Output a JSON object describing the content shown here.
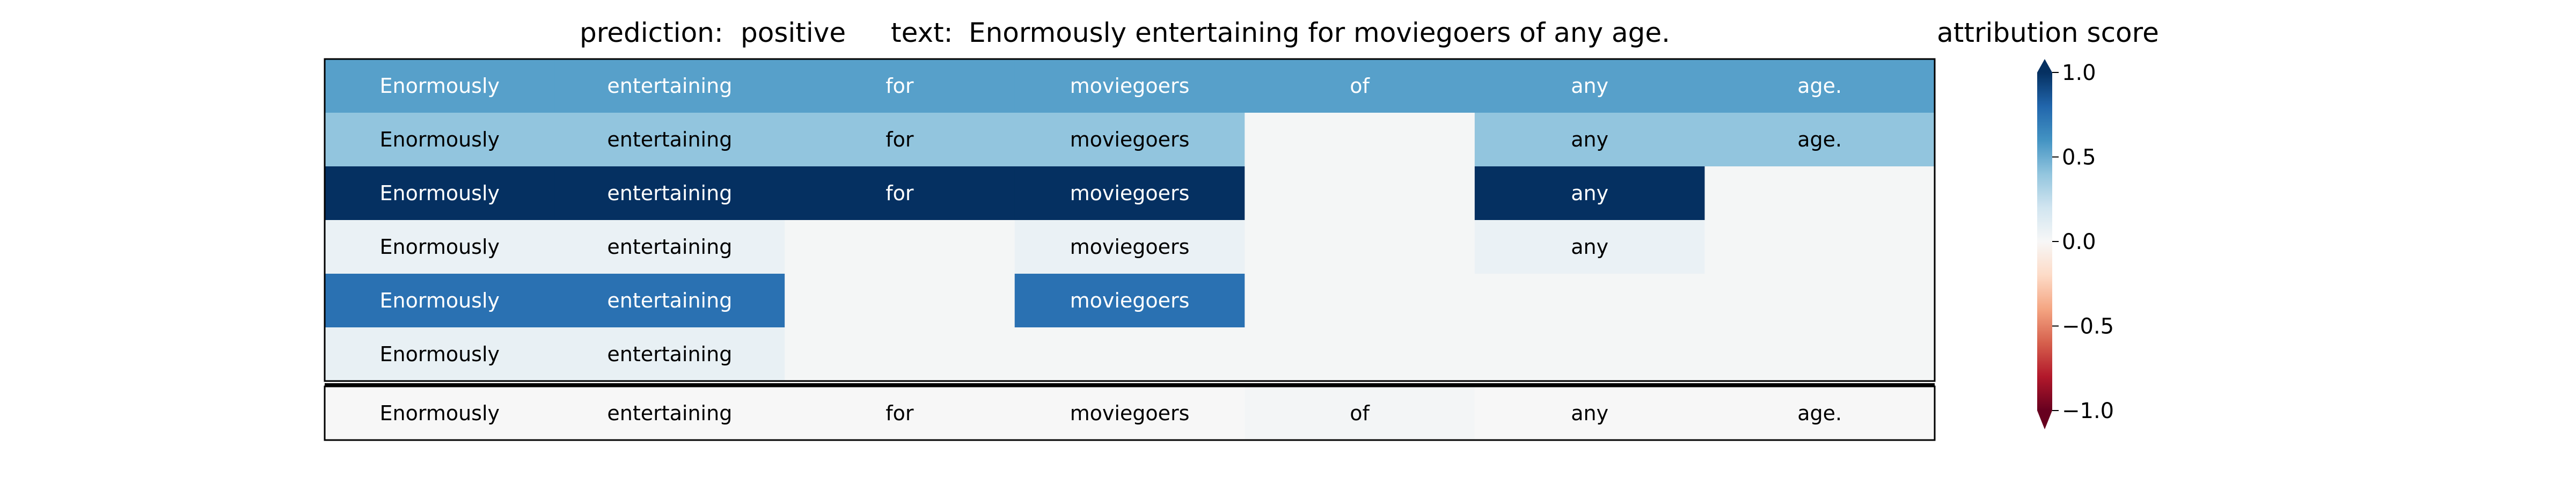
{
  "header": {
    "prediction_label": "prediction:",
    "prediction_value": "positive",
    "text_label": "text:",
    "text_value": "Enormously entertaining for moviegoers of any age."
  },
  "colorbar": {
    "title": "attribution score",
    "ticks": [
      "1.0",
      "0.5",
      "0.0",
      "−0.5",
      "−1.0"
    ],
    "tick_values": [
      1.0,
      0.5,
      0.0,
      -0.5,
      -1.0
    ],
    "range": [
      -1.0,
      1.0
    ],
    "colormap": "RdBu",
    "extend": "both"
  },
  "chart_data": {
    "type": "heatmap",
    "tokens": [
      "Enormously",
      "entertaining",
      "for",
      "moviegoers",
      "of",
      "any",
      "age."
    ],
    "rows": [
      {
        "visible": [
          true,
          true,
          true,
          true,
          true,
          true,
          true
        ],
        "score": 0.55
      },
      {
        "visible": [
          true,
          true,
          true,
          true,
          false,
          true,
          true
        ],
        "score": 0.4
      },
      {
        "visible": [
          true,
          true,
          true,
          true,
          false,
          true,
          false
        ],
        "score": 1.0
      },
      {
        "visible": [
          true,
          true,
          false,
          true,
          false,
          true,
          false
        ],
        "score": 0.07
      },
      {
        "visible": [
          true,
          true,
          false,
          true,
          false,
          false,
          false
        ],
        "score": 0.75
      },
      {
        "visible": [
          true,
          true,
          false,
          false,
          false,
          false,
          false
        ],
        "score": 0.08
      }
    ],
    "summary_row": {
      "tokens": [
        "Enormously",
        "entertaining",
        "for",
        "moviegoers",
        "of",
        "any",
        "age."
      ],
      "scores": [
        0.0,
        0.0,
        0.0,
        0.0,
        0.02,
        0.0,
        0.0
      ]
    },
    "masked_score": 0.0,
    "colors": {
      "masked": "#f4f6f6",
      "text_dark": "#000000",
      "text_light": "#ffffff"
    }
  }
}
